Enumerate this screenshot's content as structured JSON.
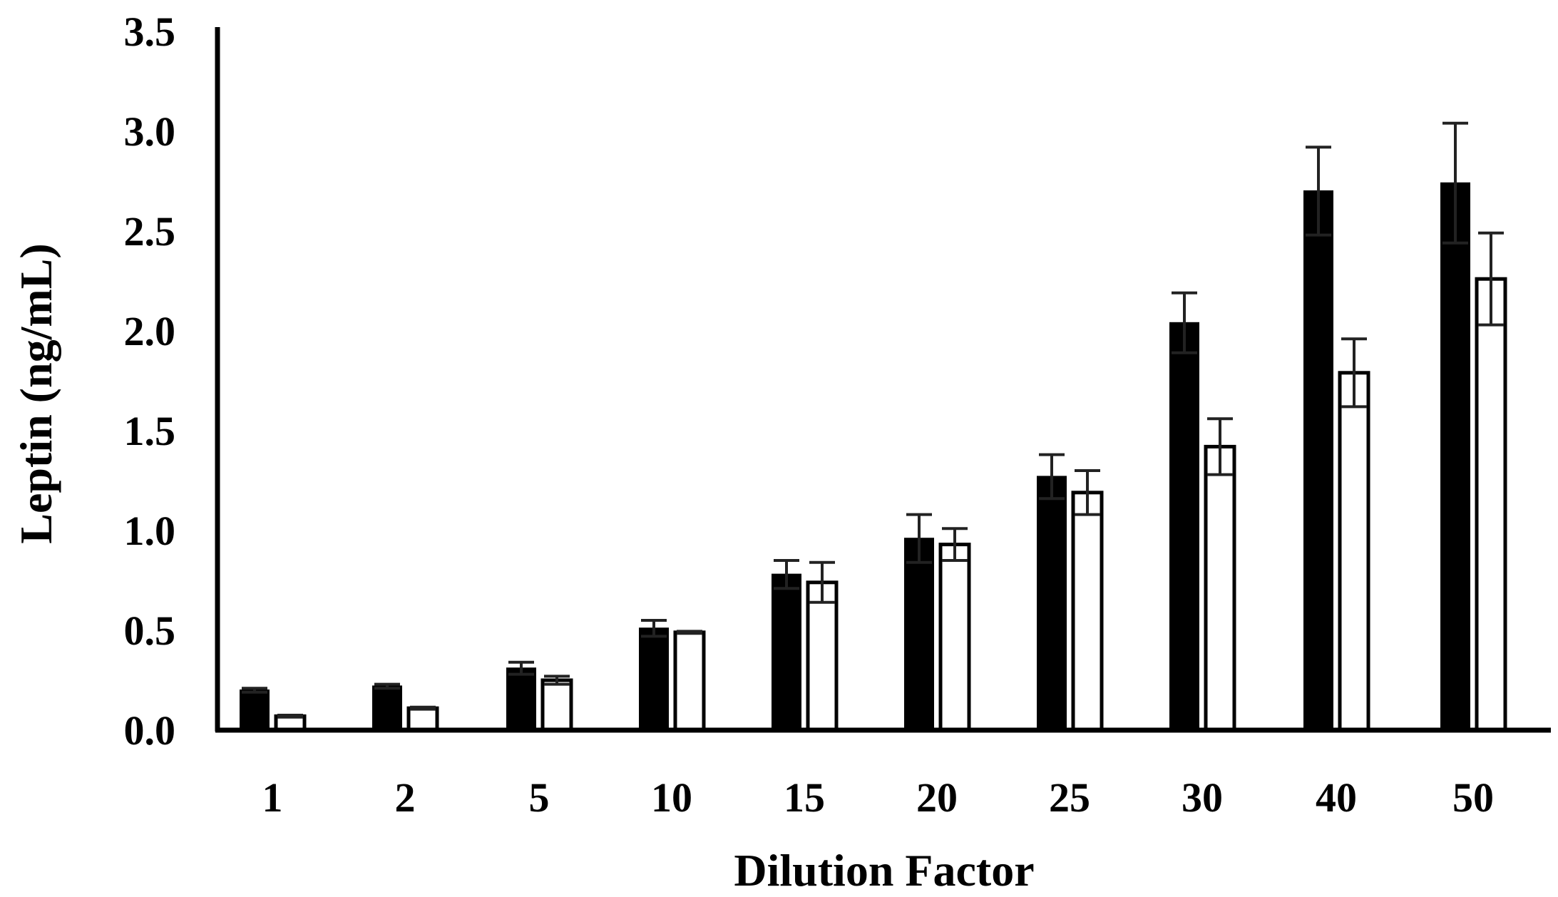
{
  "chart_data": {
    "type": "bar",
    "title": "",
    "xlabel": "Dilution Factor",
    "ylabel": "Leptin (ng/mL)",
    "ylim": [
      0,
      3.5
    ],
    "yticks": [
      "0.0",
      "0.5",
      "1.0",
      "1.5",
      "2.0",
      "2.5",
      "3.0",
      "3.5"
    ],
    "grid": false,
    "legend": "none",
    "categories": [
      "1",
      "2",
      "5",
      "10",
      "15",
      "20",
      "25",
      "30",
      "40",
      "50"
    ],
    "series": [
      {
        "fill": "#000000",
        "values": [
          0.2,
          0.22,
          0.31,
          0.51,
          0.78,
          0.96,
          1.27,
          2.04,
          2.7,
          2.74
        ],
        "errors": [
          0.01,
          0.01,
          0.03,
          0.04,
          0.07,
          0.12,
          0.11,
          0.15,
          0.22,
          0.3
        ]
      },
      {
        "fill": "#ffffff",
        "values": [
          0.07,
          0.11,
          0.25,
          0.49,
          0.74,
          0.93,
          1.19,
          1.42,
          1.79,
          2.26
        ],
        "errors": [
          0.005,
          0.005,
          0.02,
          0.005,
          0.1,
          0.08,
          0.11,
          0.14,
          0.17,
          0.23
        ]
      }
    ]
  }
}
